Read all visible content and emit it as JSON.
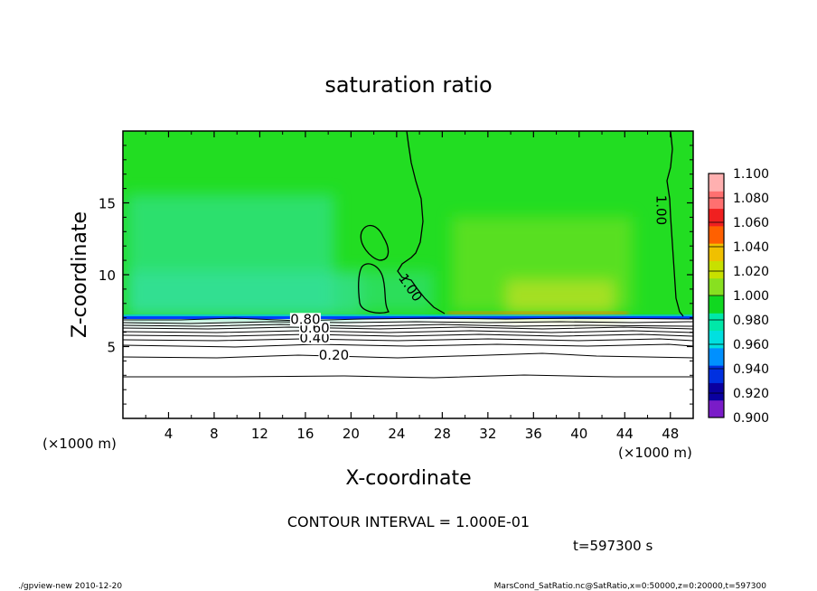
{
  "chart_data": {
    "type": "heatmap",
    "title": "saturation ratio",
    "xlabel": "X-coordinate",
    "ylabel": "Z-coordinate",
    "x_unit_left": "(×1000 m)",
    "x_unit_right": "(×1000 m)",
    "xlim": [
      0,
      50
    ],
    "ylim": [
      0,
      20
    ],
    "x_ticks": [
      4,
      8,
      12,
      16,
      20,
      24,
      28,
      32,
      36,
      40,
      44,
      48
    ],
    "y_ticks": [
      5,
      10,
      15
    ],
    "colorbar": {
      "levels": [
        "0.900",
        "0.920",
        "0.940",
        "0.960",
        "0.980",
        "1.000",
        "1.020",
        "1.040",
        "1.060",
        "1.080",
        "1.100"
      ],
      "colors": [
        "#7a1cc8",
        "#0a00a0",
        "#0030e0",
        "#0090ff",
        "#00e0e0",
        "#00e8a8",
        "#10d820",
        "#88e020",
        "#c8e000",
        "#f0c000",
        "#ff6000",
        "#f02020",
        "#ff7070",
        "#ffb0b0"
      ]
    },
    "contour_labels": [
      {
        "text": "0.20",
        "x": 18.5,
        "z": 4.4
      },
      {
        "text": "0.40",
        "x": 16.8,
        "z": 5.6
      },
      {
        "text": "0.60",
        "x": 16.8,
        "z": 6.3
      },
      {
        "text": "0.80",
        "x": 16.0,
        "z": 6.9
      },
      {
        "text": "1.00",
        "x": 25.2,
        "z": 9.1
      },
      {
        "text": "1.00",
        "x": 47.2,
        "z": 14.5
      }
    ],
    "contour_interval_text": "CONTOUR INTERVAL = 1.000E-01",
    "time_text": "t=597300 s"
  },
  "footer": {
    "left": "./gpview-new  2010-12-20",
    "right": "MarsCond_SatRatio.nc@SatRatio,x=0:50000,z=0:20000,t=597300"
  },
  "colors": {
    "field_green": "#22dd22",
    "field_light": "#33e07a",
    "field_yellow": "#a8e020"
  }
}
